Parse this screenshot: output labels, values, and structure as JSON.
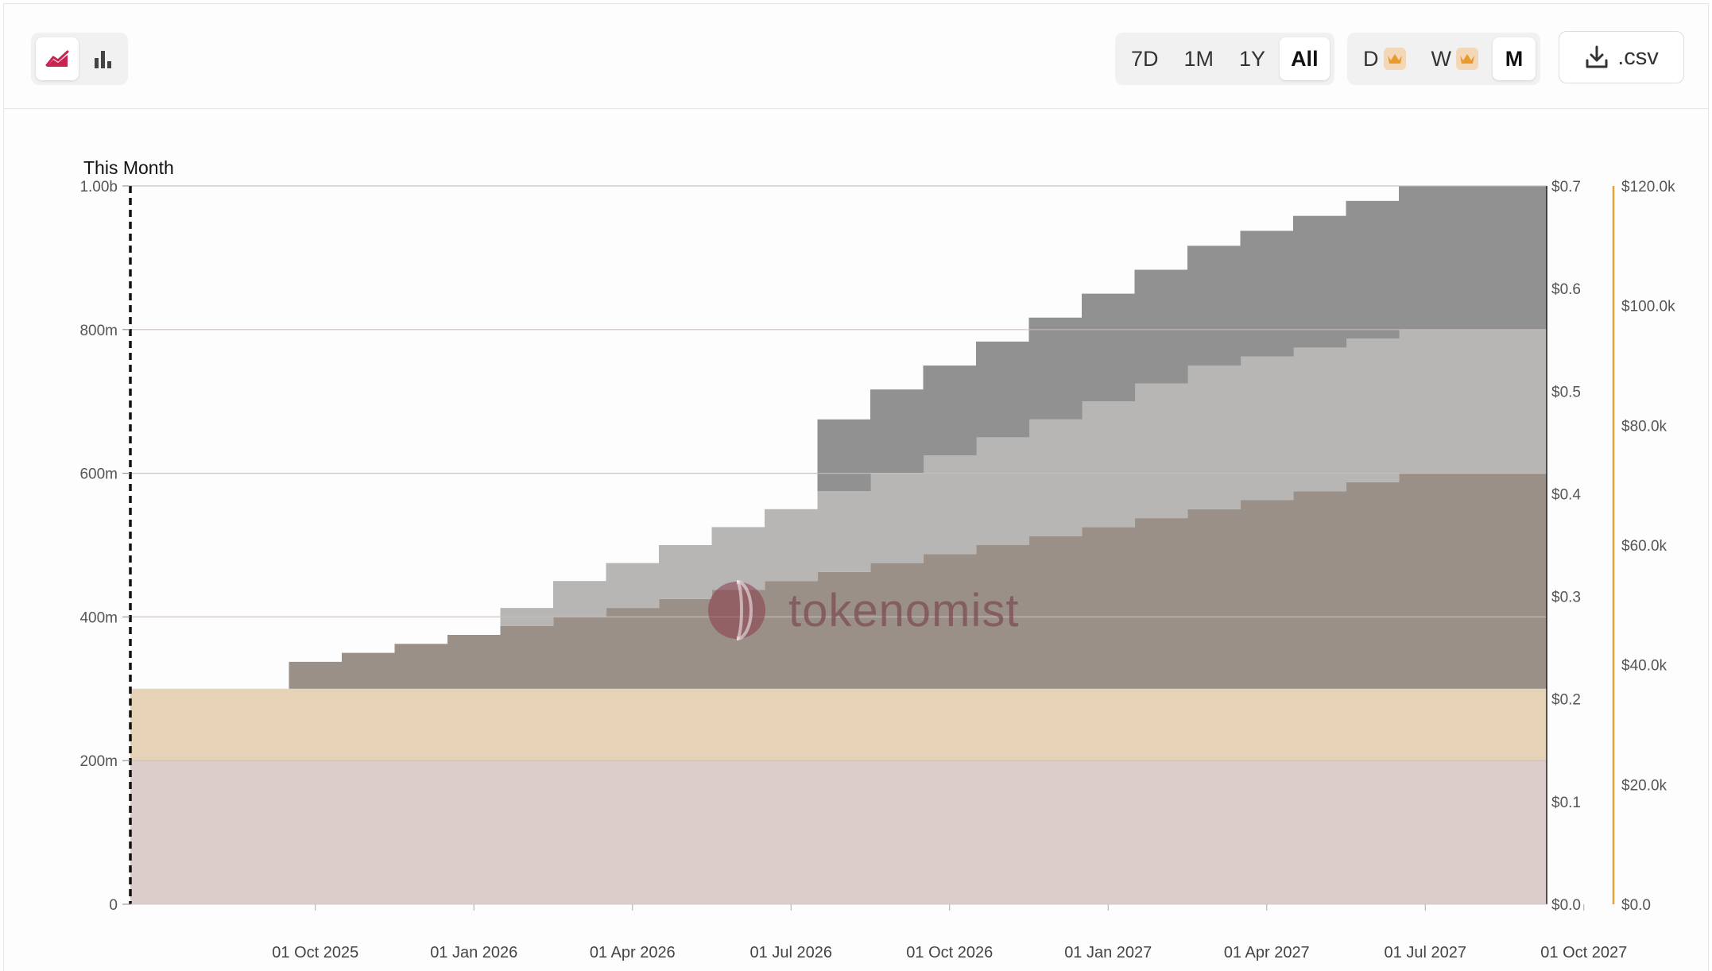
{
  "toolbar": {
    "chart_type_buttons": [
      {
        "name": "area-chart-icon",
        "active": true
      },
      {
        "name": "bar-chart-icon",
        "active": false
      }
    ],
    "range_buttons": [
      {
        "label": "7D",
        "active": false
      },
      {
        "label": "1M",
        "active": false
      },
      {
        "label": "1Y",
        "active": false
      },
      {
        "label": "All",
        "active": true
      }
    ],
    "granularity_buttons": [
      {
        "label": "D",
        "premium": true,
        "active": false
      },
      {
        "label": "W",
        "premium": true,
        "active": false
      },
      {
        "label": "M",
        "premium": false,
        "active": true
      }
    ],
    "csv_label": ".csv"
  },
  "watermark": "tokenomist",
  "colors": {
    "accent": "#c8244f",
    "crown": "#e89a2c",
    "series_base": "#dccdca",
    "series_tan": "#e6d2b6",
    "series_brown": "#9a9087",
    "series_lightgray": "#b7b6b5",
    "series_darkgray": "#919191",
    "right_axis_line": "#e2a33a"
  },
  "chart_data": {
    "type": "area",
    "step": true,
    "title": "This Month",
    "x_tick_labels": [
      "01 Oct 2025",
      "01 Jan 2026",
      "01 Apr 2026",
      "01 Jul 2026",
      "01 Oct 2026",
      "01 Jan 2027",
      "01 Apr 2027",
      "01 Jul 2027",
      "01 Oct 2027"
    ],
    "x_months": [
      "Jul 2025",
      "Aug 2025",
      "Sep 2025",
      "Oct 2025",
      "Nov 2025",
      "Dec 2025",
      "Jan 2026",
      "Feb 2026",
      "Mar 2026",
      "Apr 2026",
      "May 2026",
      "Jun 2026",
      "Jul 2026",
      "Aug 2026",
      "Sep 2026",
      "Oct 2026",
      "Nov 2026",
      "Dec 2026",
      "Jan 2027",
      "Feb 2027",
      "Mar 2027",
      "Apr 2027",
      "May 2027",
      "Jun 2027",
      "Jul 2027",
      "Aug 2027",
      "Sep 2027",
      "Oct 2027"
    ],
    "y_left": {
      "ticks": [
        "0",
        "200m",
        "400m",
        "600m",
        "800m",
        "1.00b"
      ],
      "min": 0,
      "max": 1000000000
    },
    "y_right_price": {
      "ticks": [
        "$0.0",
        "$0.1",
        "$0.2",
        "$0.3",
        "$0.4",
        "$0.5",
        "$0.6",
        "$0.7"
      ],
      "min": 0,
      "max": 0.7
    },
    "y_right_value": {
      "ticks": [
        "$0.0",
        "$20.0k",
        "$40.0k",
        "$60.0k",
        "$80.0k",
        "$100.0k",
        "$120.0k"
      ],
      "min": 0,
      "max": 120000
    },
    "series": [
      {
        "color": "#dccdca",
        "values": [
          200000000,
          200000000,
          200000000,
          200000000,
          200000000,
          200000000,
          200000000,
          200000000,
          200000000,
          200000000,
          200000000,
          200000000,
          200000000,
          200000000,
          200000000,
          200000000,
          200000000,
          200000000,
          200000000,
          200000000,
          200000000,
          200000000,
          200000000,
          200000000,
          200000000,
          200000000,
          200000000,
          200000000
        ]
      },
      {
        "color": "#e6d2b6",
        "values": [
          100000000,
          100000000,
          100000000,
          100000000,
          100000000,
          100000000,
          100000000,
          100000000,
          100000000,
          100000000,
          100000000,
          100000000,
          100000000,
          100000000,
          100000000,
          100000000,
          100000000,
          100000000,
          100000000,
          100000000,
          100000000,
          100000000,
          100000000,
          100000000,
          100000000,
          100000000,
          100000000,
          100000000
        ]
      },
      {
        "color": "#9a9087",
        "values": [
          0,
          0,
          0,
          37500000,
          50000000,
          62500000,
          75000000,
          87500000,
          100000000,
          112500000,
          125000000,
          137500000,
          150000000,
          162500000,
          175000000,
          187500000,
          200000000,
          212500000,
          225000000,
          237500000,
          250000000,
          262500000,
          275000000,
          287500000,
          300000000,
          300000000,
          300000000,
          300000000
        ]
      },
      {
        "color": "#b7b6b5",
        "values": [
          0,
          0,
          0,
          0,
          0,
          0,
          0,
          25000000,
          50000000,
          62500000,
          75000000,
          87500000,
          100000000,
          112500000,
          125000000,
          137500000,
          150000000,
          162500000,
          175000000,
          187500000,
          200000000,
          200000000,
          200000000,
          200000000,
          200000000,
          200000000,
          200000000,
          200000000
        ]
      },
      {
        "color": "#919191",
        "values": [
          0,
          0,
          0,
          0,
          0,
          0,
          0,
          0,
          0,
          0,
          0,
          0,
          0,
          100000000,
          116666667,
          125000000,
          133333333,
          141666667,
          150000000,
          158333333,
          166666667,
          175000000,
          183333333,
          191666667,
          200000000,
          200000000,
          200000000,
          200000000
        ]
      }
    ]
  }
}
